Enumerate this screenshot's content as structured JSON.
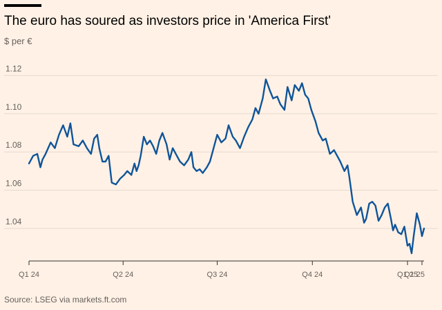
{
  "title": "The euro has soured as investors price in 'America First'",
  "source": "Source: LSEG via markets.ft.com",
  "colors": {
    "background": "#FFF1E5",
    "line": "#0F5499",
    "grid": "#E6D9CE",
    "axis": "#33302E"
  },
  "chart_data": {
    "type": "line",
    "title": "The euro has soured as investors price in 'America First'",
    "ylabel": "$ per €",
    "ylim": [
      1.023,
      1.127
    ],
    "yticks": [
      1.04,
      1.06,
      1.08,
      1.1,
      1.12
    ],
    "ytick_labels": [
      "1.04",
      "1.06",
      "1.08",
      "1.10",
      "1.12"
    ],
    "xlim": [
      "2024-01-01",
      "2025-01-17"
    ],
    "xticks": [
      {
        "label": "Q1 24",
        "date": "2024-01-01"
      },
      {
        "label": "Q2 24",
        "date": "2024-04-01"
      },
      {
        "label": "Q3 24",
        "date": "2024-07-01"
      },
      {
        "label": "Q4 24",
        "date": "2024-10-01"
      },
      {
        "label": "Q1 25",
        "date": "2025-01-01"
      },
      {
        "label": "Q1 25",
        "date": "2025-01-15"
      }
    ],
    "grid": true,
    "legend": "none",
    "series": [
      {
        "x": [
          "2024-01-01",
          "2024-01-05",
          "2024-01-09",
          "2024-01-12",
          "2024-01-14",
          "2024-01-17",
          "2024-01-22",
          "2024-01-26",
          "2024-01-30",
          "2024-02-03",
          "2024-02-07",
          "2024-02-10",
          "2024-02-13",
          "2024-02-18",
          "2024-02-22",
          "2024-02-26",
          "2024-03-01",
          "2024-03-04",
          "2024-03-07",
          "2024-03-09",
          "2024-03-12",
          "2024-03-15",
          "2024-03-18",
          "2024-03-21",
          "2024-03-25",
          "2024-03-29",
          "2024-04-02",
          "2024-04-05",
          "2024-04-09",
          "2024-04-12",
          "2024-04-14",
          "2024-04-16",
          "2024-04-18",
          "2024-04-21",
          "2024-04-24",
          "2024-04-27",
          "2024-04-30",
          "2024-05-03",
          "2024-05-06",
          "2024-05-09",
          "2024-05-13",
          "2024-05-16",
          "2024-05-19",
          "2024-05-22",
          "2024-05-26",
          "2024-05-30",
          "2024-06-03",
          "2024-06-06",
          "2024-06-08",
          "2024-06-11",
          "2024-06-14",
          "2024-06-17",
          "2024-06-21",
          "2024-06-24",
          "2024-06-27",
          "2024-07-01",
          "2024-07-05",
          "2024-07-09",
          "2024-07-12",
          "2024-07-16",
          "2024-07-19",
          "2024-07-23",
          "2024-07-27",
          "2024-07-31",
          "2024-08-04",
          "2024-08-07",
          "2024-08-10",
          "2024-08-14",
          "2024-08-17",
          "2024-08-21",
          "2024-08-24",
          "2024-08-28",
          "2024-08-31",
          "2024-09-04",
          "2024-09-07",
          "2024-09-11",
          "2024-09-14",
          "2024-09-18",
          "2024-09-21",
          "2024-09-24",
          "2024-09-27",
          "2024-09-30",
          "2024-10-04",
          "2024-10-07",
          "2024-10-11",
          "2024-10-14",
          "2024-10-18",
          "2024-10-22",
          "2024-10-25",
          "2024-10-28",
          "2024-11-01",
          "2024-11-04",
          "2024-11-06",
          "2024-11-09",
          "2024-11-13",
          "2024-11-17",
          "2024-11-20",
          "2024-11-22",
          "2024-11-25",
          "2024-11-28",
          "2024-12-01",
          "2024-12-04",
          "2024-12-07",
          "2024-12-10",
          "2024-12-13",
          "2024-12-16",
          "2024-12-18",
          "2024-12-20",
          "2024-12-23",
          "2024-12-26",
          "2024-12-29",
          "2025-01-01",
          "2025-01-03",
          "2025-01-05",
          "2025-01-07",
          "2025-01-10",
          "2025-01-13",
          "2025-01-15",
          "2025-01-17"
        ],
        "y": [
          1.074,
          1.078,
          1.079,
          1.072,
          1.076,
          1.079,
          1.085,
          1.082,
          1.089,
          1.094,
          1.088,
          1.095,
          1.084,
          1.083,
          1.086,
          1.082,
          1.079,
          1.087,
          1.089,
          1.082,
          1.075,
          1.075,
          1.078,
          1.064,
          1.063,
          1.066,
          1.068,
          1.07,
          1.068,
          1.074,
          1.07,
          1.073,
          1.078,
          1.088,
          1.084,
          1.086,
          1.083,
          1.079,
          1.086,
          1.09,
          1.084,
          1.076,
          1.082,
          1.079,
          1.075,
          1.073,
          1.076,
          1.08,
          1.072,
          1.07,
          1.071,
          1.069,
          1.072,
          1.075,
          1.081,
          1.089,
          1.085,
          1.087,
          1.094,
          1.088,
          1.086,
          1.082,
          1.088,
          1.093,
          1.097,
          1.103,
          1.1,
          1.108,
          1.118,
          1.112,
          1.108,
          1.109,
          1.105,
          1.102,
          1.114,
          1.107,
          1.115,
          1.112,
          1.116,
          1.11,
          1.108,
          1.102,
          1.096,
          1.09,
          1.086,
          1.087,
          1.079,
          1.081,
          1.078,
          1.075,
          1.07,
          1.073,
          1.066,
          1.054,
          1.047,
          1.051,
          1.043,
          1.045,
          1.053,
          1.054,
          1.052,
          1.044,
          1.047,
          1.051,
          1.053,
          1.045,
          1.039,
          1.042,
          1.038,
          1.037,
          1.041,
          1.031,
          1.032,
          1.027,
          1.036,
          1.048,
          1.042,
          1.036,
          1.04
        ]
      }
    ]
  }
}
